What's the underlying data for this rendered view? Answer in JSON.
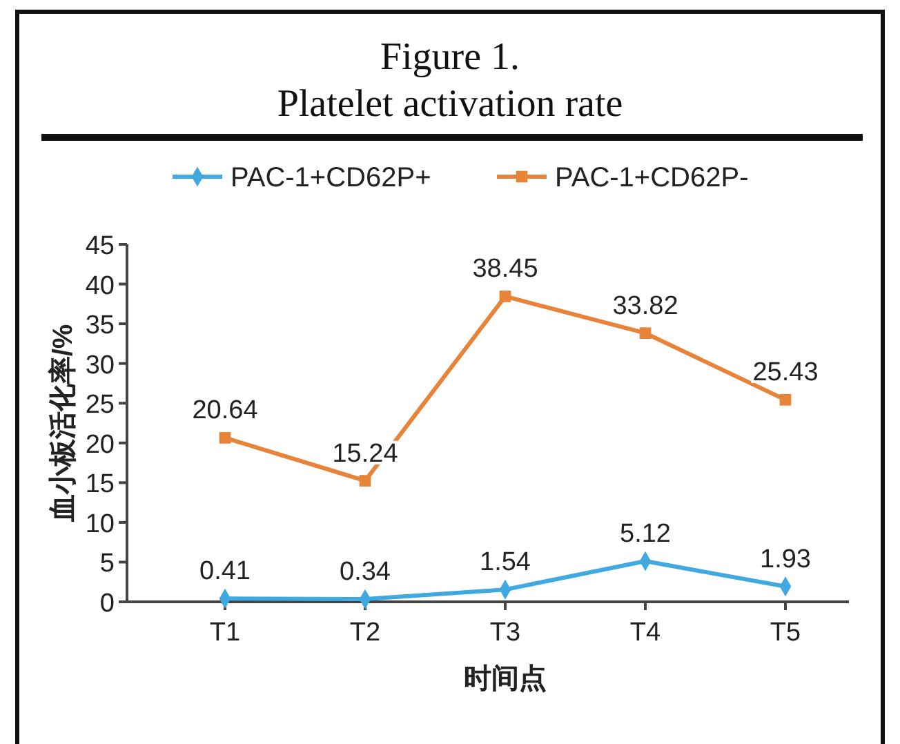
{
  "chart_data": {
    "type": "line",
    "title": "Figure 1.\nPlatelet activation rate",
    "xlabel": "时间点",
    "ylabel": "血小板活化率/%",
    "categories": [
      "T1",
      "T2",
      "T3",
      "T4",
      "T5"
    ],
    "series": [
      {
        "name": "PAC-1+CD62P+",
        "color": "#3fa9e0",
        "marker": "diamond",
        "values": [
          0.41,
          0.34,
          1.54,
          5.12,
          1.93
        ]
      },
      {
        "name": "PAC-1+CD62P-",
        "color": "#e8833a",
        "marker": "square",
        "values": [
          20.64,
          15.24,
          38.45,
          33.82,
          25.43
        ]
      }
    ],
    "ylim": [
      0,
      45
    ],
    "yticks": [
      0,
      5,
      10,
      15,
      20,
      25,
      30,
      35,
      40,
      45
    ],
    "data_labels": true,
    "legend": "top",
    "grid": false
  }
}
